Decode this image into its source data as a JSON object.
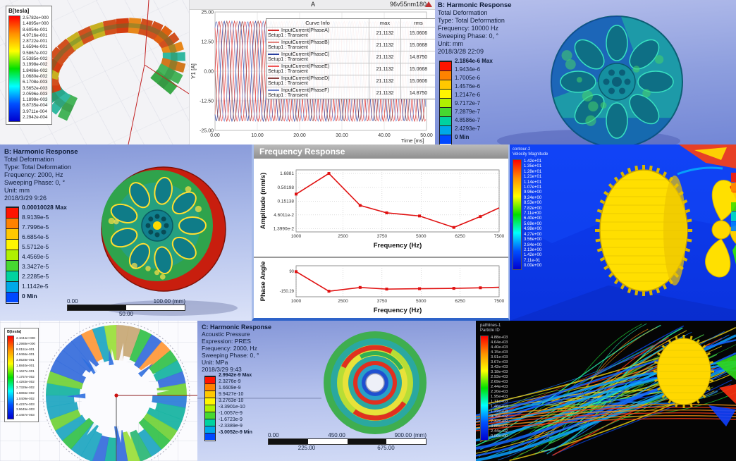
{
  "tiles": {
    "torus": {
      "legend_title": "B[tesla]",
      "legend_values": [
        "2.5782e+000",
        "1.4895e+000",
        "8.6054e-001",
        "4.9716e-001",
        "2.8722e-001",
        "1.6594e-001",
        "9.5867e-002",
        "5.5385e-002",
        "3.1998e-002",
        "1.8486e-002",
        "1.0680e-002",
        "6.1708e-003",
        "3.5652e-003",
        "2.0596e-003",
        "1.1898e-003",
        "6.8735e-004",
        "3.9711e-004",
        "2.2942e-004"
      ]
    },
    "harmonic10k": {
      "lines": [
        "B: Harmonic Response",
        "Total Deformation",
        "Type: Total Deformation",
        "Frequency: 10000 Hz",
        "Sweeping Phase: 0, °",
        "Unit: mm",
        "2018/3/28 22:09"
      ],
      "colorbar": {
        "values": [
          "2.1864e-6 Max",
          "1.9434e-6",
          "1.7005e-6",
          "1.4576e-6",
          "1.2147e-6",
          "9.7172e-7",
          "7.2879e-7",
          "4.8586e-7",
          "2.4293e-7",
          "0 Min"
        ]
      }
    },
    "harmonic2k": {
      "lines": [
        "B: Harmonic Response",
        "Total Deformation",
        "Type: Total Deformation",
        "Frequency: 2000, Hz",
        "Sweeping Phase: 0, °",
        "Unit: mm",
        "2018/3/29 9:26"
      ],
      "colorbar": {
        "values": [
          "0.00010028 Max",
          "8.9139e-5",
          "7.7996e-5",
          "6.6854e-5",
          "5.5712e-5",
          "4.4569e-5",
          "3.3427e-5",
          "2.2285e-5",
          "1.1142e-5",
          "0 Min"
        ]
      },
      "scalebar": {
        "left": "0.00",
        "right": "100.00 (mm)",
        "mid": "50.00"
      }
    },
    "freq_window": {
      "title": "Frequency Response"
    },
    "cfd_contour": {
      "colorbar": {
        "title1": "contour-2",
        "title2": "Velocity Magnitude",
        "values": [
          "1.42e+01",
          "1.35e+01",
          "1.28e+01",
          "1.21e+01",
          "1.14e+01",
          "1.07e+01",
          "9.96e+00",
          "9.24e+00",
          "8.53e+00",
          "7.82e+00",
          "7.11e+00",
          "6.40e+00",
          "5.69e+00",
          "4.98e+00",
          "4.27e+00",
          "3.56e+00",
          "2.84e+00",
          "2.13e+00",
          "1.42e+00",
          "7.11e-01",
          "0.00e+00"
        ]
      }
    },
    "flux_ring": {
      "legend_title": "B[tesla]",
      "legend_values": [
        "2.1044e+000",
        "1.2988e+000",
        "8.0151e-001",
        "4.9466e-001",
        "3.0528e-001",
        "1.8840e-001",
        "1.1627e-001",
        "7.1757e-002",
        "4.4283e-002",
        "2.7329e-002",
        "1.6866e-002",
        "1.0409e-002",
        "6.4237e-003",
        "3.9645e-003",
        "2.4467e-003"
      ]
    },
    "acoustic": {
      "lines": [
        "C: Harmonic Response",
        "Acoustic Pressure",
        "Expression: PRES",
        "Frequency: 2000, Hz",
        "Sweeping Phase: 0, °",
        "Unit: MPa",
        "2018/3/29 9:43"
      ],
      "colorbar": {
        "values": [
          "2.9942e-9 Max",
          "2.3276e-9",
          "1.6609e-9",
          "9.9427e-10",
          "3.2763e-10",
          "-3.3901e-10",
          "-1.0057e-9",
          "-1.6723e-9",
          "-2.3389e-9",
          "-3.0052e-9 Min"
        ]
      },
      "scalebar": {
        "v0": "0.00",
        "v450": "450.00",
        "v900": "900.00 (mm)",
        "v225": "225.00",
        "v675": "675.00"
      }
    },
    "streamlines": {
      "colorbar": {
        "title1": "pathlines-1",
        "title2": "Particle ID",
        "values": [
          "4.88e+03",
          "4.64e+03",
          "4.40e+03",
          "4.15e+03",
          "3.91e+03",
          "3.67e+03",
          "3.42e+03",
          "3.18e+03",
          "2.93e+03",
          "2.69e+03",
          "2.44e+03",
          "2.20e+03",
          "1.95e+03",
          "1.71e+03",
          "1.46e+03",
          "1.22e+03",
          "9.76e+02",
          "7.32e+02",
          "4.88e+02",
          "2.44e+02",
          "0.00e+00"
        ]
      }
    }
  },
  "chart_data": [
    {
      "type": "line",
      "title": "96v55nm180",
      "corner_label": "A",
      "xlabel": "Time [ms]",
      "ylabel": "Y1 [A]",
      "xlim": [
        0,
        50
      ],
      "ylim": [
        -25,
        25
      ],
      "xticks": [
        "0.00",
        "10.00",
        "20.00",
        "30.00",
        "40.00",
        "50.00"
      ],
      "yticks": [
        "25.00",
        "12.50",
        "0.00",
        "-12.50",
        "-25.00"
      ],
      "amplitude": 21.1132,
      "period_ms": 3.7,
      "legend": {
        "headers": [
          "Curve Info",
          "max",
          "rms"
        ]
      },
      "series": [
        {
          "name": "InputCurrent(PhaseA)",
          "sub": "Setup1 : Transient",
          "max": "21.1132",
          "rms": "15.0606",
          "phase_deg": 0,
          "color": "#d42a2a"
        },
        {
          "name": "InputCurrent(PhaseB)",
          "sub": "Setup1 : Transient",
          "max": "21.1132",
          "rms": "15.0668",
          "phase_deg": -60,
          "color": "#e2837d"
        },
        {
          "name": "InputCurrent(PhaseC)",
          "sub": "Setup1 : Transient",
          "max": "21.1132",
          "rms": "14.8750",
          "phase_deg": -120,
          "color": "#2b3f9e"
        },
        {
          "name": "InputCurrent(PhaseE)",
          "sub": "Setup1 : Transient",
          "max": "21.1132",
          "rms": "15.0668",
          "phase_deg": -240,
          "color": "#f05555"
        },
        {
          "name": "InputCurrent(PhaseD)",
          "sub": "Setup1 : Transient",
          "max": "21.1132",
          "rms": "15.0606",
          "phase_deg": -180,
          "color": "#8a4040"
        },
        {
          "name": "InputCurrent(PhaseF)",
          "sub": "Setup1 : Transient",
          "max": "21.1132",
          "rms": "14.8750",
          "phase_deg": -300,
          "color": "#6b80c9"
        }
      ]
    },
    {
      "type": "line",
      "yscale": "log",
      "ylabel": "Amplitude (mm/s)",
      "xlabel": "Frequency (Hz)",
      "yticks": [
        {
          "v": 1.6881,
          "label": "1.6881"
        },
        {
          "v": 0.50198,
          "label": "0.50198"
        },
        {
          "v": 0.15138,
          "label": "0.15138"
        },
        {
          "v": 0.046011,
          "label": "4.6011e-2"
        },
        {
          "v": 0.01399,
          "label": "1.3990e-2"
        }
      ],
      "xticks": [
        1000,
        2500,
        3750,
        5000,
        6250,
        7500
      ],
      "xlim": [
        1000,
        7500
      ],
      "points": [
        [
          1000,
          0.28
        ],
        [
          2050,
          1.6881
        ],
        [
          3050,
          0.105
        ],
        [
          3900,
          0.055
        ],
        [
          4950,
          0.042
        ],
        [
          6050,
          0.0155
        ],
        [
          6900,
          0.04
        ],
        [
          7500,
          0.085
        ]
      ],
      "color": "#e01010"
    },
    {
      "type": "line",
      "ylabel": "Phase Angle",
      "xlabel": "Frequency (Hz)",
      "yticks": [
        {
          "v": 90,
          "label": "90"
        },
        {
          "v": -150.29,
          "label": "-150.29"
        }
      ],
      "xticks": [
        1000,
        2500,
        3750,
        5000,
        6250,
        7500
      ],
      "xlim": [
        1000,
        7500
      ],
      "ylim": [
        -220,
        160
      ],
      "points": [
        [
          1000,
          88
        ],
        [
          2050,
          -152
        ],
        [
          3050,
          -106
        ],
        [
          3900,
          -126
        ],
        [
          4950,
          -121
        ],
        [
          6050,
          -117
        ],
        [
          6900,
          -110
        ],
        [
          7500,
          -104
        ]
      ],
      "color": "#e01010"
    }
  ],
  "colors": {
    "band9": [
      "#ff1400",
      "#ff8200",
      "#ffc800",
      "#fff500",
      "#b0f000",
      "#46d830",
      "#00d2a0",
      "#00a8e8",
      "#0048ff"
    ],
    "rainbow_gradient": [
      "#ff0000",
      "#ff9000",
      "#ffff00",
      "#00e000",
      "#00ffff",
      "#0050ff",
      "#0000d0"
    ],
    "red_line": "#e01010"
  },
  "decor": {
    "torus_top": [
      "#e06010",
      "#d43c10",
      "#e8871a",
      "#c8b020",
      "#d2501e",
      "#e06c14"
    ],
    "torus_bottom": [
      "#46b45a",
      "#28a88c",
      "#8cc832",
      "#3aa848",
      "#d2781e",
      "#32b8a0"
    ],
    "ring_palette": [
      "#38c24e",
      "#2fb878",
      "#23a8c2",
      "#2f80d8",
      "#74d23c",
      "#9cdf3e",
      "#ff9a3c",
      "#c8aa78",
      "#1ab4a2",
      "#3a70dc"
    ],
    "stream_palette": [
      "#19c832",
      "#8ce01e",
      "#ffe014",
      "#ff9614",
      "#ff3c14",
      "#14c8e6",
      "#1478ff",
      "#0a46e6",
      "#28ffb4",
      "#50e050"
    ]
  }
}
